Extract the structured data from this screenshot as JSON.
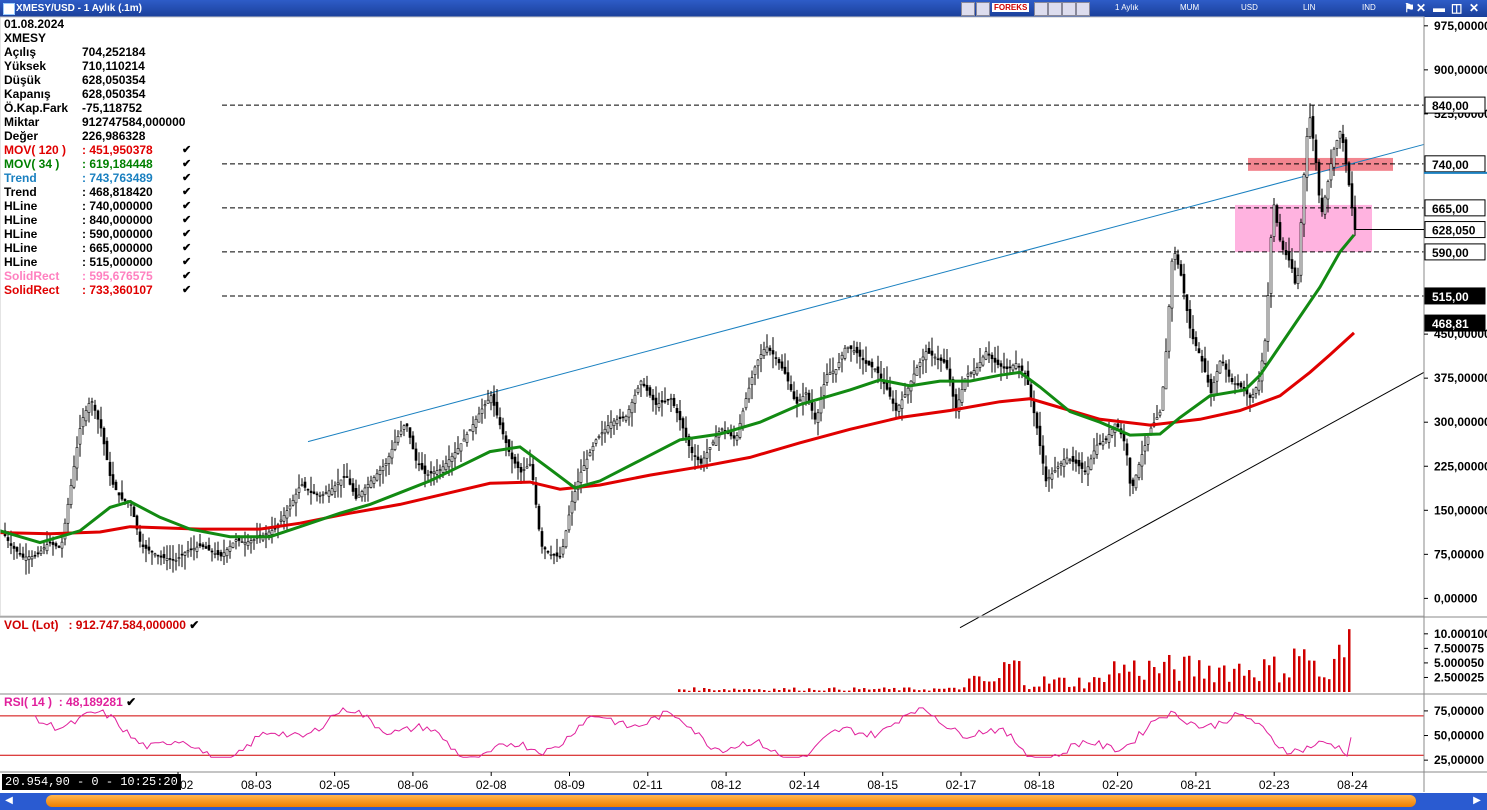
{
  "window": {
    "title": "XMESY/USD - 1 Aylık (.1m)",
    "toolbar": {
      "period": "1 Aylık",
      "style": "MUM",
      "currency": "USD",
      "scale": "LIN",
      "mode": "IND",
      "brand": "FOREKS"
    }
  },
  "info": {
    "date": "01.08.2024",
    "symbol": "XMESY",
    "rows": [
      {
        "label": "Açılış",
        "value": "704,252184"
      },
      {
        "label": "Yüksek",
        "value": "710,110214"
      },
      {
        "label": "Düşük",
        "value": "628,050354"
      },
      {
        "label": "Kapanış",
        "value": "628,050354"
      },
      {
        "label": "Ö.Kap.Fark",
        "value": "-75,118752"
      },
      {
        "label": "Miktar",
        "value": "912747584,000000"
      },
      {
        "label": "Değer",
        "value": "226,986328"
      }
    ],
    "indicators": [
      {
        "label": "MOV( 120 )",
        "value": ": 451,950378",
        "color": "#e00000"
      },
      {
        "label": "MOV( 34 )",
        "value": ": 619,184448",
        "color": "#008000"
      },
      {
        "label": "Trend",
        "value": ": 743,763489",
        "color": "#1a80c0"
      },
      {
        "label": "Trend",
        "value": ": 468,818420",
        "color": "#000000"
      },
      {
        "label": "HLine",
        "value": ": 740,000000",
        "color": "#000000"
      },
      {
        "label": "HLine",
        "value": ": 840,000000",
        "color": "#000000"
      },
      {
        "label": "HLine",
        "value": ": 590,000000",
        "color": "#000000"
      },
      {
        "label": "HLine",
        "value": ": 665,000000",
        "color": "#000000"
      },
      {
        "label": "HLine",
        "value": ": 515,000000",
        "color": "#000000"
      },
      {
        "label": "SolidRect",
        "value": ": 595,676575",
        "color": "#ff80c0"
      },
      {
        "label": "SolidRect",
        "value": ": 733,360107",
        "color": "#e00000"
      }
    ]
  },
  "volume_panel": {
    "label": "VOL (Lot)",
    "value": ": 912.747.584,000000"
  },
  "rsi_panel": {
    "label": "RSI( 14 )",
    "value": ": 48,189281"
  },
  "status": {
    "text": "20.954,90 - 0 - 10:25:20"
  },
  "chart_data": [
    {
      "type": "candlestick",
      "title": "XMESY/USD - 1 Aylık (.1m)",
      "x_ticks": [
        "02-02",
        "08-03",
        "02-05",
        "08-06",
        "02-08",
        "08-09",
        "02-11",
        "08-12",
        "02-14",
        "08-15",
        "02-17",
        "08-18",
        "02-20",
        "08-21",
        "02-23",
        "08-24"
      ],
      "y_ticks": [
        "0,00000",
        "75,00000",
        "150,00000",
        "225,00000",
        "300,00000",
        "375,00000",
        "450,00000",
        "525,00000",
        "900,00000",
        "975,00000"
      ],
      "ylim": [
        -30,
        990
      ],
      "close_series": [
        [
          0,
          118
        ],
        [
          10,
          90
        ],
        [
          22,
          70
        ],
        [
          35,
          72
        ],
        [
          48,
          95
        ],
        [
          60,
          85
        ],
        [
          80,
          300
        ],
        [
          90,
          340
        ],
        [
          100,
          290
        ],
        [
          110,
          200
        ],
        [
          120,
          170
        ],
        [
          130,
          160
        ],
        [
          140,
          90
        ],
        [
          150,
          80
        ],
        [
          160,
          70
        ],
        [
          175,
          65
        ],
        [
          185,
          80
        ],
        [
          200,
          90
        ],
        [
          210,
          80
        ],
        [
          220,
          72
        ],
        [
          235,
          100
        ],
        [
          245,
          95
        ],
        [
          260,
          105
        ],
        [
          275,
          120
        ],
        [
          290,
          160
        ],
        [
          300,
          195
        ],
        [
          310,
          180
        ],
        [
          320,
          175
        ],
        [
          330,
          185
        ],
        [
          345,
          210
        ],
        [
          355,
          170
        ],
        [
          370,
          200
        ],
        [
          385,
          230
        ],
        [
          395,
          270
        ],
        [
          405,
          300
        ],
        [
          415,
          235
        ],
        [
          425,
          210
        ],
        [
          440,
          220
        ],
        [
          455,
          250
        ],
        [
          470,
          290
        ],
        [
          480,
          320
        ],
        [
          490,
          345
        ],
        [
          500,
          290
        ],
        [
          510,
          240
        ],
        [
          520,
          215
        ],
        [
          530,
          230
        ],
        [
          540,
          90
        ],
        [
          550,
          75
        ],
        [
          560,
          70
        ],
        [
          570,
          160
        ],
        [
          580,
          215
        ],
        [
          595,
          270
        ],
        [
          610,
          300
        ],
        [
          625,
          310
        ],
        [
          640,
          370
        ],
        [
          655,
          330
        ],
        [
          670,
          340
        ],
        [
          680,
          300
        ],
        [
          690,
          250
        ],
        [
          700,
          230
        ],
        [
          710,
          260
        ],
        [
          720,
          290
        ],
        [
          735,
          270
        ],
        [
          745,
          340
        ],
        [
          755,
          400
        ],
        [
          765,
          430
        ],
        [
          775,
          410
        ],
        [
          785,
          380
        ],
        [
          795,
          330
        ],
        [
          805,
          350
        ],
        [
          815,
          300
        ],
        [
          825,
          380
        ],
        [
          835,
          390
        ],
        [
          845,
          430
        ],
        [
          855,
          420
        ],
        [
          865,
          400
        ],
        [
          875,
          390
        ],
        [
          885,
          360
        ],
        [
          895,
          320
        ],
        [
          905,
          350
        ],
        [
          915,
          390
        ],
        [
          925,
          420
        ],
        [
          935,
          410
        ],
        [
          945,
          400
        ],
        [
          955,
          320
        ],
        [
          965,
          380
        ],
        [
          975,
          390
        ],
        [
          985,
          420
        ],
        [
          995,
          400
        ],
        [
          1005,
          390
        ],
        [
          1015,
          400
        ],
        [
          1025,
          380
        ],
        [
          1035,
          300
        ],
        [
          1045,
          200
        ],
        [
          1055,
          220
        ],
        [
          1065,
          240
        ],
        [
          1075,
          230
        ],
        [
          1085,
          215
        ],
        [
          1095,
          260
        ],
        [
          1105,
          270
        ],
        [
          1115,
          300
        ],
        [
          1125,
          260
        ],
        [
          1130,
          180
        ],
        [
          1140,
          240
        ],
        [
          1150,
          290
        ],
        [
          1160,
          320
        ],
        [
          1165,
          420
        ],
        [
          1172,
          600
        ],
        [
          1180,
          550
        ],
        [
          1190,
          450
        ],
        [
          1200,
          410
        ],
        [
          1210,
          350
        ],
        [
          1220,
          410
        ],
        [
          1230,
          370
        ],
        [
          1240,
          360
        ],
        [
          1250,
          340
        ],
        [
          1258,
          370
        ],
        [
          1265,
          450
        ],
        [
          1272,
          680
        ],
        [
          1280,
          600
        ],
        [
          1290,
          570
        ],
        [
          1296,
          520
        ],
        [
          1302,
          700
        ],
        [
          1308,
          830
        ],
        [
          1314,
          760
        ],
        [
          1320,
          650
        ],
        [
          1326,
          700
        ],
        [
          1332,
          760
        ],
        [
          1340,
          800
        ],
        [
          1348,
          704
        ],
        [
          1354,
          628
        ]
      ],
      "mov120": [
        [
          0,
          112
        ],
        [
          50,
          110
        ],
        [
          100,
          113
        ],
        [
          130,
          122
        ],
        [
          200,
          118
        ],
        [
          260,
          118
        ],
        [
          300,
          128
        ],
        [
          350,
          145
        ],
        [
          400,
          160
        ],
        [
          450,
          180
        ],
        [
          490,
          196
        ],
        [
          530,
          198
        ],
        [
          560,
          186
        ],
        [
          600,
          193
        ],
        [
          650,
          210
        ],
        [
          700,
          224
        ],
        [
          750,
          240
        ],
        [
          800,
          265
        ],
        [
          850,
          288
        ],
        [
          900,
          308
        ],
        [
          950,
          320
        ],
        [
          1000,
          335
        ],
        [
          1030,
          340
        ],
        [
          1060,
          325
        ],
        [
          1100,
          305
        ],
        [
          1150,
          295
        ],
        [
          1200,
          305
        ],
        [
          1240,
          320
        ],
        [
          1280,
          345
        ],
        [
          1310,
          385
        ],
        [
          1330,
          415
        ],
        [
          1354,
          452
        ]
      ],
      "mov34": [
        [
          0,
          115
        ],
        [
          40,
          95
        ],
        [
          80,
          115
        ],
        [
          110,
          155
        ],
        [
          130,
          165
        ],
        [
          160,
          138
        ],
        [
          190,
          118
        ],
        [
          230,
          105
        ],
        [
          270,
          105
        ],
        [
          300,
          122
        ],
        [
          340,
          145
        ],
        [
          370,
          160
        ],
        [
          400,
          180
        ],
        [
          430,
          200
        ],
        [
          460,
          225
        ],
        [
          490,
          250
        ],
        [
          520,
          258
        ],
        [
          550,
          220
        ],
        [
          575,
          188
        ],
        [
          600,
          200
        ],
        [
          640,
          235
        ],
        [
          680,
          270
        ],
        [
          720,
          280
        ],
        [
          760,
          300
        ],
        [
          800,
          330
        ],
        [
          850,
          355
        ],
        [
          880,
          372
        ],
        [
          910,
          362
        ],
        [
          940,
          370
        ],
        [
          970,
          370
        ],
        [
          1000,
          380
        ],
        [
          1020,
          385
        ],
        [
          1040,
          360
        ],
        [
          1070,
          318
        ],
        [
          1100,
          300
        ],
        [
          1130,
          278
        ],
        [
          1160,
          280
        ],
        [
          1180,
          308
        ],
        [
          1210,
          345
        ],
        [
          1245,
          355
        ],
        [
          1260,
          380
        ],
        [
          1280,
          430
        ],
        [
          1300,
          480
        ],
        [
          1320,
          530
        ],
        [
          1340,
          590
        ],
        [
          1354,
          619
        ]
      ],
      "trend_lines": [
        {
          "name": "Trend",
          "value": 743.763489,
          "from": [
            308,
            267
          ],
          "to": [
            1424,
            773
          ]
        },
        {
          "name": "Trend",
          "value": 468.81842,
          "from": [
            960,
            -50
          ],
          "to": [
            1424,
            385
          ]
        }
      ],
      "hlines": [
        840,
        740,
        665,
        590,
        515
      ],
      "price_badges": [
        "840,00",
        "740,00",
        "665,00",
        "628,050",
        "590,00",
        "515,00",
        "468,81"
      ],
      "solid_rects": [
        {
          "value": 595.676575,
          "x_from": 1235,
          "x_to": 1372,
          "y_from": 590,
          "y_to": 670,
          "color": "#ffb3e0"
        },
        {
          "value": 733.360107,
          "x_from": 1248,
          "x_to": 1393,
          "y_from": 728,
          "y_to": 750,
          "color": "#f2858f"
        }
      ]
    },
    {
      "type": "bar",
      "title": "VOL (Lot)",
      "y_ticks": [
        "2.500025",
        "5.000050",
        "7.500075",
        "10.000100"
      ],
      "ylim": [
        0,
        11
      ],
      "last_value": 912747584
    },
    {
      "type": "line",
      "title": "RSI( 14 )",
      "y_ticks": [
        "25,00000",
        "50,00000",
        "75,00000"
      ],
      "ylim": [
        15,
        82
      ],
      "levels": [
        70,
        30
      ],
      "last_value": 48.189281
    }
  ]
}
